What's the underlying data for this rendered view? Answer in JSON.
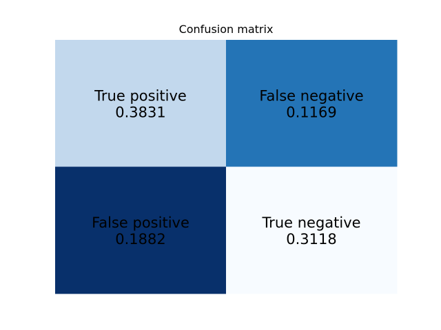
{
  "chart_data": {
    "type": "heatmap",
    "title": "Confusion matrix",
    "rows": 2,
    "cols": 2,
    "cells": [
      {
        "label": "True positive",
        "value": "0.3831",
        "row": 0,
        "col": 0,
        "color": "#c2d8ed"
      },
      {
        "label": "False negative",
        "value": "0.1169",
        "row": 0,
        "col": 1,
        "color": "#2474b6"
      },
      {
        "label": "False positive",
        "value": "0.1882",
        "row": 1,
        "col": 0,
        "color": "#08306b"
      },
      {
        "label": "True negative",
        "value": "0.3118",
        "row": 1,
        "col": 1,
        "color": "#f7fbff"
      }
    ],
    "colormap": "Blues",
    "grid": false,
    "axes_visible": false
  }
}
